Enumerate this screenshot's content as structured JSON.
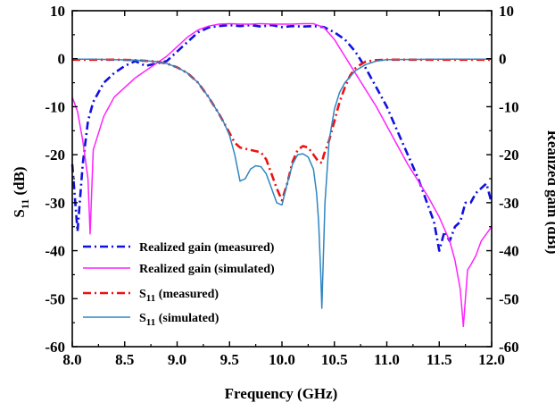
{
  "chart_data": {
    "type": "line",
    "title": "",
    "xlabel": "Frequency (GHz)",
    "ylabel_left": "S",
    "ylabel_left_sub": "11",
    "ylabel_left_unit": " (dB)",
    "ylabel_right": "Realized gain (dBi)",
    "xlim": [
      8.0,
      12.0
    ],
    "ylim": [
      -60,
      10
    ],
    "xticks": [
      "8.0",
      "8.5",
      "9.0",
      "9.5",
      "10.0",
      "10.5",
      "11.0",
      "11.5",
      "12.0"
    ],
    "yticks": [
      "10",
      "0",
      "-10",
      "-20",
      "-30",
      "-40",
      "-50",
      "-60"
    ],
    "grid": false,
    "legend_position": "bottom-left",
    "series": [
      {
        "name": "Realized gain (measured)",
        "name_main": "Realized gain (measured)",
        "name_sub": "",
        "name_suffix": "",
        "color": "#1010e0",
        "dash": "dashdot",
        "x": [
          8.0,
          8.05,
          8.1,
          8.15,
          8.2,
          8.3,
          8.4,
          8.5,
          8.6,
          8.7,
          8.8,
          8.9,
          9.0,
          9.1,
          9.2,
          9.3,
          9.4,
          9.5,
          9.6,
          9.7,
          9.8,
          9.9,
          10.0,
          10.1,
          10.2,
          10.3,
          10.4,
          10.5,
          10.6,
          10.7,
          10.8,
          10.9,
          11.0,
          11.1,
          11.2,
          11.3,
          11.4,
          11.45,
          11.5,
          11.55,
          11.6,
          11.65,
          11.7,
          11.75,
          11.8,
          11.85,
          11.9,
          11.95,
          12.0
        ],
        "y": [
          -22,
          -36,
          -22,
          -13,
          -9,
          -5,
          -3,
          -1.5,
          -0.5,
          -1.5,
          -1.0,
          -0.5,
          1.5,
          3.5,
          5.5,
          6.5,
          6.8,
          7.0,
          6.8,
          7.0,
          6.7,
          7.0,
          6.6,
          6.8,
          6.7,
          6.8,
          6.6,
          5.5,
          4.0,
          1.5,
          -2,
          -6,
          -10,
          -15,
          -20,
          -25,
          -31,
          -34,
          -40,
          -36,
          -38,
          -35,
          -34,
          -30,
          -30,
          -28,
          -27,
          -26,
          -30
        ]
      },
      {
        "name": "Realized gain (simulated)",
        "name_main": "Realized gain (simulated)",
        "name_sub": "",
        "name_suffix": "",
        "color": "#ff22ff",
        "dash": "solid",
        "x": [
          8.0,
          8.05,
          8.1,
          8.15,
          8.17,
          8.2,
          8.3,
          8.4,
          8.5,
          8.6,
          8.7,
          8.8,
          8.9,
          9.0,
          9.1,
          9.2,
          9.3,
          9.4,
          9.5,
          9.6,
          9.7,
          9.8,
          9.9,
          10.0,
          10.1,
          10.2,
          10.3,
          10.4,
          10.5,
          10.6,
          10.7,
          10.8,
          10.9,
          11.0,
          11.1,
          11.2,
          11.3,
          11.4,
          11.5,
          11.6,
          11.65,
          11.7,
          11.73,
          11.77,
          11.8,
          11.85,
          11.9,
          12.0
        ],
        "y": [
          -8,
          -11,
          -17,
          -25,
          -36.5,
          -19,
          -12,
          -8,
          -6,
          -4,
          -2.5,
          -1,
          0.5,
          2.5,
          4.5,
          6,
          6.8,
          7.2,
          7.3,
          7.2,
          7.2,
          7.3,
          7.2,
          7.2,
          7.2,
          7.3,
          7.3,
          6.5,
          4.0,
          0.5,
          -3,
          -6.5,
          -10,
          -14,
          -18,
          -22,
          -25.5,
          -29,
          -33,
          -38,
          -42,
          -48,
          -55.8,
          -44,
          -43,
          -41,
          -38,
          -35
        ]
      },
      {
        "name": "S11 (measured)",
        "name_main": "S",
        "name_sub": "11",
        "name_suffix": " (measured)",
        "color": "#ee1111",
        "dash": "dashdot",
        "x": [
          8.0,
          8.2,
          8.4,
          8.6,
          8.8,
          8.9,
          9.0,
          9.1,
          9.2,
          9.3,
          9.4,
          9.5,
          9.55,
          9.6,
          9.7,
          9.8,
          9.85,
          9.9,
          9.95,
          10.0,
          10.05,
          10.1,
          10.15,
          10.2,
          10.25,
          10.3,
          10.35,
          10.38,
          10.4,
          10.45,
          10.5,
          10.55,
          10.6,
          10.65,
          10.7,
          10.75,
          10.8,
          10.9,
          11.0,
          11.5,
          12.0
        ],
        "y": [
          -0.2,
          -0.2,
          -0.2,
          -0.3,
          -0.6,
          -1.0,
          -1.8,
          -3,
          -5,
          -8,
          -11.5,
          -15.5,
          -17.5,
          -18.5,
          -19,
          -19.5,
          -21,
          -24,
          -27,
          -29.5,
          -26,
          -21.5,
          -19,
          -18.2,
          -18.5,
          -20,
          -21.5,
          -21.7,
          -20,
          -17,
          -13,
          -9,
          -6,
          -3.5,
          -2,
          -1.2,
          -0.6,
          -0.3,
          -0.2,
          -0.2,
          -0.2
        ]
      },
      {
        "name": "S11 (simulated)",
        "name_main": "S",
        "name_sub": "11",
        "name_suffix": " (simulated)",
        "color": "#2e86c1",
        "dash": "solid",
        "x": [
          8.0,
          8.2,
          8.4,
          8.6,
          8.8,
          8.9,
          9.0,
          9.1,
          9.2,
          9.3,
          9.4,
          9.45,
          9.5,
          9.55,
          9.6,
          9.65,
          9.7,
          9.75,
          9.8,
          9.85,
          9.9,
          9.95,
          10.0,
          10.05,
          10.1,
          10.15,
          10.2,
          10.25,
          10.3,
          10.33,
          10.35,
          10.37,
          10.38,
          10.39,
          10.41,
          10.45,
          10.5,
          10.55,
          10.6,
          10.7,
          10.8,
          10.9,
          11.0,
          11.5,
          12.0
        ],
        "y": [
          -0.1,
          -0.1,
          -0.2,
          -0.3,
          -0.6,
          -1.0,
          -1.8,
          -3,
          -5,
          -8,
          -11.5,
          -13.5,
          -16,
          -20,
          -25.5,
          -25,
          -23,
          -22.3,
          -22.5,
          -24,
          -27,
          -30,
          -30.5,
          -26,
          -22,
          -20,
          -19.8,
          -20.5,
          -23,
          -28,
          -34,
          -45,
          -52,
          -45,
          -30,
          -17,
          -10.5,
          -7,
          -5,
          -2.5,
          -1.2,
          -0.5,
          -0.2,
          -0.1,
          -0.1
        ]
      }
    ]
  }
}
